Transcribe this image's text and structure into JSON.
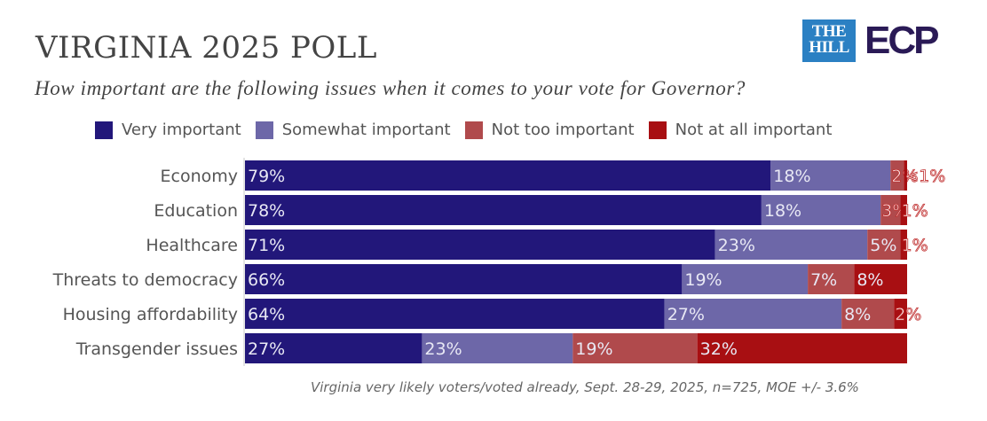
{
  "header": {
    "title": "VIRGINIA 2025 POLL",
    "subtitle": "How important are the following issues when it comes to your vote for Governor?",
    "logos": {
      "the_hill": [
        "THE",
        "HILL"
      ],
      "ecp": "ECP"
    }
  },
  "footnote": "Virginia very likely voters/voted already, Sept. 28-29, 2025, n=725, MOE +/- 3.6%",
  "chart_data": {
    "type": "bar",
    "orientation": "horizontal",
    "stacked": true,
    "title": "VIRGINIA 2025 POLL",
    "subtitle": "How important are the following issues when it comes to your vote for Governor?",
    "xlabel": "",
    "ylabel": "",
    "xlim": [
      0,
      100
    ],
    "grid": false,
    "legend_position": "top",
    "categories": [
      "Economy",
      "Education",
      "Healthcare",
      "Threats to democracy",
      "Housing affordability",
      "Transgender issues"
    ],
    "series": [
      {
        "name": "Very important",
        "color": "#22177a",
        "values": [
          79,
          78,
          71,
          66,
          64,
          27
        ],
        "labels": [
          "79%",
          "78%",
          "71%",
          "66%",
          "64%",
          "27%"
        ]
      },
      {
        "name": "Somewhat important",
        "color": "#6d67a8",
        "values": [
          18,
          18,
          23,
          19,
          27,
          23
        ],
        "labels": [
          "18%",
          "18%",
          "23%",
          "19%",
          "27%",
          "23%"
        ]
      },
      {
        "name": "Not too important",
        "color": "#b04a4c",
        "values": [
          2,
          3,
          5,
          7,
          8,
          19
        ],
        "labels": [
          "2%",
          "3%",
          "5%",
          "7%",
          "8%",
          "19%"
        ]
      },
      {
        "name": "Not at all important",
        "color": "#a80f12",
        "values": [
          0.5,
          1,
          1,
          8,
          2,
          32
        ],
        "labels": [
          "<1%",
          "1%",
          "1%",
          "8%",
          "2%",
          "32%"
        ]
      }
    ]
  }
}
